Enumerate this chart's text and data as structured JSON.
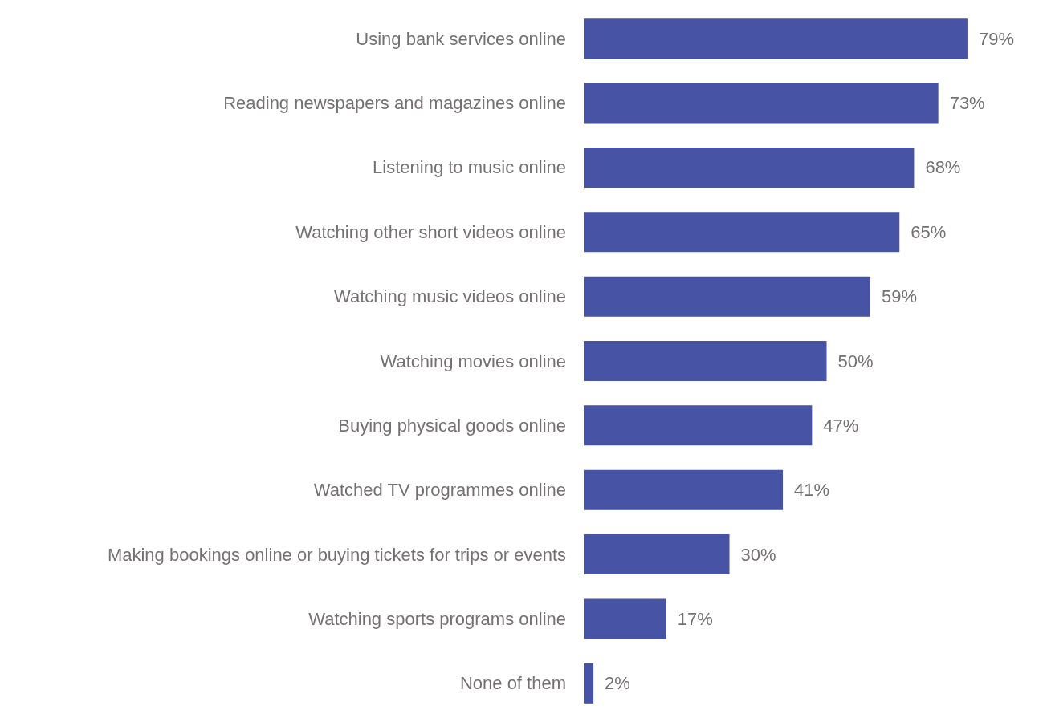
{
  "chart_data": {
    "type": "bar",
    "orientation": "horizontal",
    "categories": [
      "Using bank services online",
      "Reading newspapers and magazines online",
      "Listening to music online",
      "Watching other short videos online",
      "Watching music videos online",
      "Watching movies online",
      "Buying physical goods online",
      "Watched TV programmes online",
      "Making bookings online or buying tickets for trips or events",
      "Watching sports programs online",
      "None of them"
    ],
    "values": [
      79,
      73,
      68,
      65,
      59,
      50,
      47,
      41,
      30,
      17,
      2
    ],
    "value_labels": [
      "79%",
      "73%",
      "68%",
      "65%",
      "59%",
      "50%",
      "47%",
      "41%",
      "30%",
      "17%",
      "2%"
    ],
    "color": "#4753a5"
  }
}
